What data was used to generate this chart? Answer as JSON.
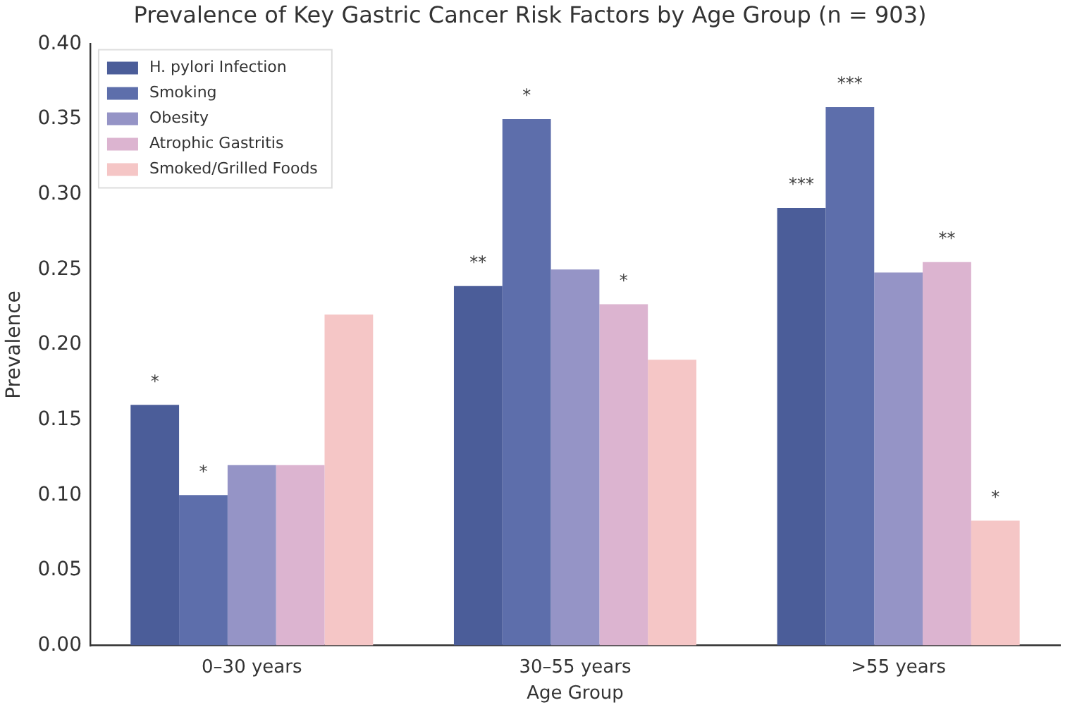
{
  "chart_data": {
    "type": "bar",
    "title": "Prevalence of Key Gastric Cancer Risk Factors by Age Group (n = 903)",
    "xlabel": "Age Group",
    "ylabel": "Prevalence",
    "categories": [
      "0–30 years",
      "30–55 years",
      ">55 years"
    ],
    "series": [
      {
        "name": "H. pylori Infection",
        "color": "#4b5d99",
        "values": [
          0.16,
          0.239,
          0.291
        ],
        "value_labels": [
          "*",
          "**",
          "***"
        ]
      },
      {
        "name": "Smoking",
        "color": "#5d6eab",
        "values": [
          0.1,
          0.35,
          0.358
        ],
        "value_labels": [
          "*",
          "*",
          "***"
        ]
      },
      {
        "name": "Obesity",
        "color": "#9594c6",
        "values": [
          0.12,
          0.25,
          0.248
        ],
        "value_labels": [
          null,
          null,
          null
        ]
      },
      {
        "name": "Atrophic Gastritis",
        "color": "#dcb4d0",
        "values": [
          0.12,
          0.227,
          0.255
        ],
        "value_labels": [
          null,
          "*",
          "**"
        ]
      },
      {
        "name": "Smoked/Grilled Foods",
        "color": "#f5c6c6",
        "values": [
          0.22,
          0.19,
          0.083
        ],
        "value_labels": [
          null,
          null,
          "*"
        ]
      }
    ],
    "ylim": [
      0,
      0.4
    ],
    "yticks": [
      {
        "value": 0,
        "label": "0.00"
      },
      0.05,
      {
        "value": 0.1,
        "label": "0.10"
      },
      0.15,
      {
        "value": 0.2,
        "label": "0.20"
      },
      0.25,
      {
        "value": 0.3,
        "label": "0.30"
      },
      0.35,
      {
        "value": 0.4,
        "label": "0.40"
      }
    ],
    "grid": false,
    "legend": "top left"
  }
}
